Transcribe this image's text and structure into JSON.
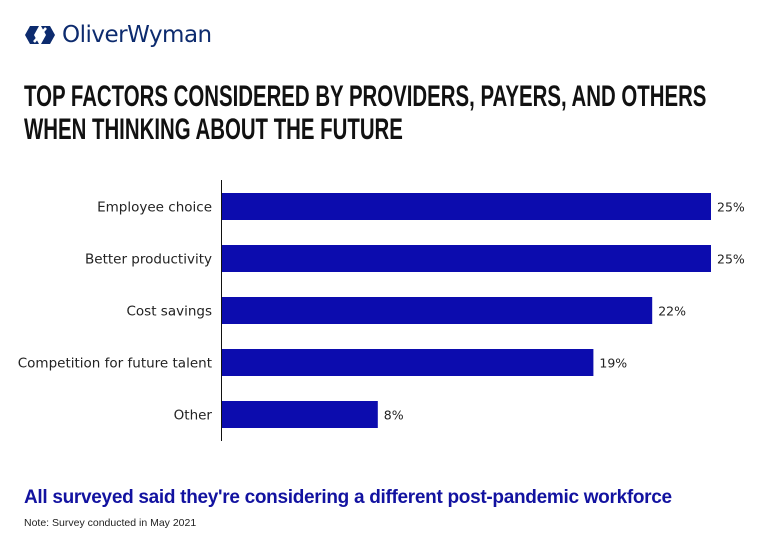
{
  "brand": {
    "name": "OliverWyman",
    "color": "#0d2b6e"
  },
  "chart_data": {
    "type": "bar",
    "orientation": "horizontal",
    "title": "TOP FACTORS CONSIDERED BY PROVIDERS, PAYERS, AND OTHERS WHEN THINKING ABOUT THE FUTURE",
    "title_lines": [
      "TOP FACTORS CONSIDERED BY PROVIDERS, PAYERS, AND OTHERS",
      "WHEN THINKING ABOUT THE FUTURE"
    ],
    "categories": [
      "Employee choice",
      "Better productivity",
      "Cost savings",
      "Competition for future talent",
      "Other"
    ],
    "values": [
      25,
      25,
      22,
      19,
      8
    ],
    "labels": [
      "25%",
      "25%",
      "22%",
      "19%",
      "8%"
    ],
    "unit": "%",
    "xlim": [
      0,
      25
    ],
    "bar_color": "#0c0cae",
    "grid": false
  },
  "subtitle": "All surveyed said they're considering a different post-pandemic workforce",
  "note": "Note: Survey conducted in May 2021"
}
